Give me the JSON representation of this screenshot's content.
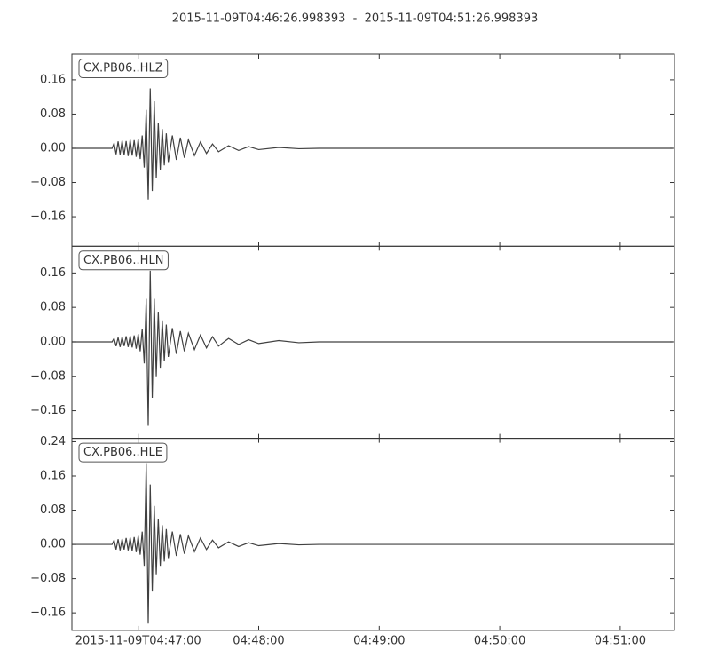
{
  "title": "2015-11-09T04:46:26.998393  -  2015-11-09T04:51:26.998393",
  "chart_data": [
    {
      "type": "line",
      "label": "CX.PB06..HLZ",
      "color": "#404040",
      "x": [
        "04:46:27",
        "04:46:47",
        "04:46:48",
        "04:46:49",
        "04:46:50",
        "04:46:51",
        "04:46:52",
        "04:46:53",
        "04:46:54",
        "04:46:55",
        "04:46:56",
        "04:46:57",
        "04:46:58",
        "04:46:59",
        "04:47:00",
        "04:47:01",
        "04:47:02",
        "04:47:03",
        "04:47:04",
        "04:47:05",
        "04:47:06",
        "04:47:07",
        "04:47:08",
        "04:47:09",
        "04:47:10",
        "04:47:11",
        "04:47:12",
        "04:47:13",
        "04:47:14",
        "04:47:15",
        "04:47:17",
        "04:47:19",
        "04:47:21",
        "04:47:23",
        "04:47:25",
        "04:47:28",
        "04:47:31",
        "04:47:34",
        "04:47:37",
        "04:47:40",
        "04:47:45",
        "04:47:50",
        "04:47:55",
        "04:48:00",
        "04:48:10",
        "04:48:20",
        "04:48:30",
        "04:51:26"
      ],
      "values": [
        0,
        0,
        0.012,
        -0.014,
        0.016,
        -0.015,
        0.018,
        -0.016,
        0.017,
        -0.018,
        0.02,
        -0.017,
        0.019,
        -0.02,
        0.022,
        -0.025,
        0.03,
        -0.045,
        0.09,
        -0.12,
        0.14,
        -0.1,
        0.11,
        -0.07,
        0.06,
        -0.05,
        0.045,
        -0.04,
        0.035,
        -0.032,
        0.03,
        -0.027,
        0.025,
        -0.022,
        0.02,
        -0.017,
        0.015,
        -0.012,
        0.01,
        -0.008,
        0.006,
        -0.005,
        0.004,
        -0.003,
        0.002,
        -0.001,
        0,
        0
      ],
      "xlim": [
        "2015-11-09T04:46:26.998393",
        "2015-11-09T04:51:26.998393"
      ],
      "ylim": [
        -0.229,
        0.22
      ],
      "yticks": [
        0.16,
        0.08,
        {
          "value": 0,
          "label": "0.00"
        },
        {
          "value": -0.08,
          "label": "−0.08"
        },
        {
          "value": -0.16,
          "label": "−0.16"
        }
      ]
    },
    {
      "type": "line",
      "label": "CX.PB06..HLN",
      "color": "#404040",
      "x": [
        "04:46:27",
        "04:46:47",
        "04:46:48",
        "04:46:49",
        "04:46:50",
        "04:46:51",
        "04:46:52",
        "04:46:53",
        "04:46:54",
        "04:46:55",
        "04:46:56",
        "04:46:57",
        "04:46:58",
        "04:46:59",
        "04:47:00",
        "04:47:01",
        "04:47:02",
        "04:47:03",
        "04:47:04",
        "04:47:05",
        "04:47:06",
        "04:47:07",
        "04:47:08",
        "04:47:09",
        "04:47:10",
        "04:47:11",
        "04:47:12",
        "04:47:13",
        "04:47:14",
        "04:47:15",
        "04:47:17",
        "04:47:19",
        "04:47:21",
        "04:47:23",
        "04:47:25",
        "04:47:28",
        "04:47:31",
        "04:47:34",
        "04:47:37",
        "04:47:40",
        "04:47:45",
        "04:47:50",
        "04:47:55",
        "04:48:00",
        "04:48:10",
        "04:48:20",
        "04:48:30",
        "04:51:26"
      ],
      "values": [
        0,
        0,
        0.008,
        -0.01,
        0.01,
        -0.012,
        0.012,
        -0.01,
        0.013,
        -0.012,
        0.014,
        -0.013,
        0.015,
        -0.016,
        0.018,
        -0.022,
        0.03,
        -0.05,
        0.1,
        -0.195,
        0.165,
        -0.13,
        0.1,
        -0.08,
        0.07,
        -0.06,
        0.05,
        -0.045,
        0.04,
        -0.035,
        0.032,
        -0.028,
        0.025,
        -0.022,
        0.02,
        -0.018,
        0.016,
        -0.014,
        0.012,
        -0.01,
        0.008,
        -0.006,
        0.005,
        -0.004,
        0.003,
        -0.002,
        0,
        0
      ],
      "xlim": [
        "2015-11-09T04:46:26.998393",
        "2015-11-09T04:51:26.998393"
      ],
      "ylim": [
        -0.224,
        0.222
      ],
      "yticks": [
        0.16,
        0.08,
        {
          "value": 0,
          "label": "0.00"
        },
        {
          "value": -0.08,
          "label": "−0.08"
        },
        {
          "value": -0.16,
          "label": "−0.16"
        }
      ]
    },
    {
      "type": "line",
      "label": "CX.PB06..HLE",
      "color": "#404040",
      "x": [
        "04:46:27",
        "04:46:47",
        "04:46:48",
        "04:46:49",
        "04:46:50",
        "04:46:51",
        "04:46:52",
        "04:46:53",
        "04:46:54",
        "04:46:55",
        "04:46:56",
        "04:46:57",
        "04:46:58",
        "04:46:59",
        "04:47:00",
        "04:47:01",
        "04:47:02",
        "04:47:03",
        "04:47:04",
        "04:47:05",
        "04:47:06",
        "04:47:07",
        "04:47:08",
        "04:47:09",
        "04:47:10",
        "04:47:11",
        "04:47:12",
        "04:47:13",
        "04:47:14",
        "04:47:15",
        "04:47:17",
        "04:47:19",
        "04:47:21",
        "04:47:23",
        "04:47:25",
        "04:47:28",
        "04:47:31",
        "04:47:34",
        "04:47:37",
        "04:47:40",
        "04:47:45",
        "04:47:50",
        "04:47:55",
        "04:48:00",
        "04:48:10",
        "04:48:20",
        "04:48:30",
        "04:51:26"
      ],
      "values": [
        0,
        0,
        0.01,
        -0.012,
        0.012,
        -0.014,
        0.013,
        -0.012,
        0.015,
        -0.014,
        0.016,
        -0.015,
        0.017,
        -0.018,
        0.02,
        -0.024,
        0.03,
        -0.05,
        0.19,
        -0.185,
        0.14,
        -0.11,
        0.09,
        -0.07,
        0.06,
        -0.05,
        0.045,
        -0.04,
        0.036,
        -0.032,
        0.03,
        -0.027,
        0.024,
        -0.022,
        0.02,
        -0.017,
        0.015,
        -0.012,
        0.01,
        -0.008,
        0.006,
        -0.005,
        0.004,
        -0.003,
        0.002,
        -0.001,
        0,
        0
      ],
      "xlim": [
        "2015-11-09T04:46:26.998393",
        "2015-11-09T04:51:26.998393"
      ],
      "ylim": [
        -0.201,
        0.248
      ],
      "yticks": [
        0.24,
        0.16,
        0.08,
        {
          "value": 0,
          "label": "0.00"
        },
        {
          "value": -0.08,
          "label": "−0.08"
        },
        {
          "value": -0.16,
          "label": "−0.16"
        }
      ],
      "xticks": [
        "2015-11-09T04:47:00",
        "04:48:00",
        "04:49:00",
        "04:50:00",
        "04:51:00"
      ]
    }
  ]
}
